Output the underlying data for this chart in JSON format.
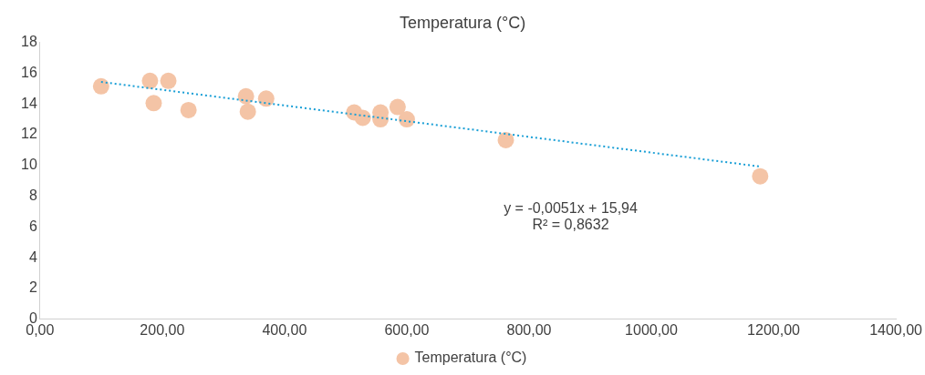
{
  "chart_data": {
    "type": "scatter",
    "title": "Temperatura (°C)",
    "series": [
      {
        "name": "Temperatura (°C)",
        "color": "#f4c4a6",
        "x": [
          100,
          180,
          210,
          186,
          243,
          337,
          370,
          340,
          514,
          528,
          557,
          557,
          585,
          600,
          762,
          1178
        ],
        "values": [
          15.15,
          15.5,
          15.5,
          14.05,
          13.6,
          14.5,
          14.35,
          13.5,
          13.45,
          13.1,
          13.45,
          13.0,
          13.8,
          13.0,
          11.65,
          9.3
        ]
      },
      {
        "type": "line",
        "color": "#1a9fd6",
        "line_style": "dotted",
        "marker": "none",
        "x": [
          100,
          1178
        ],
        "values": [
          15.43,
          9.93
        ]
      }
    ],
    "xlim": [
      0,
      1400
    ],
    "xticks": [
      {
        "value": 0,
        "label": "0,00"
      },
      {
        "value": 200,
        "label": "200,00"
      },
      {
        "value": 400,
        "label": "400,00"
      },
      {
        "value": 600,
        "label": "600,00"
      },
      {
        "value": 800,
        "label": "800,00"
      },
      {
        "value": 1000,
        "label": "1000,00"
      },
      {
        "value": 1200,
        "label": "1200,00"
      },
      {
        "value": 1400,
        "label": "1400,00"
      }
    ],
    "ylim": [
      0,
      18
    ],
    "yticks": [
      0,
      2,
      4,
      6,
      8,
      10,
      12,
      14,
      16,
      18
    ],
    "annotations": [
      "y = -0,0051x + 15,94",
      "R² = 0,8632"
    ],
    "grid": false,
    "legend": "bottom",
    "marker": "circle"
  }
}
